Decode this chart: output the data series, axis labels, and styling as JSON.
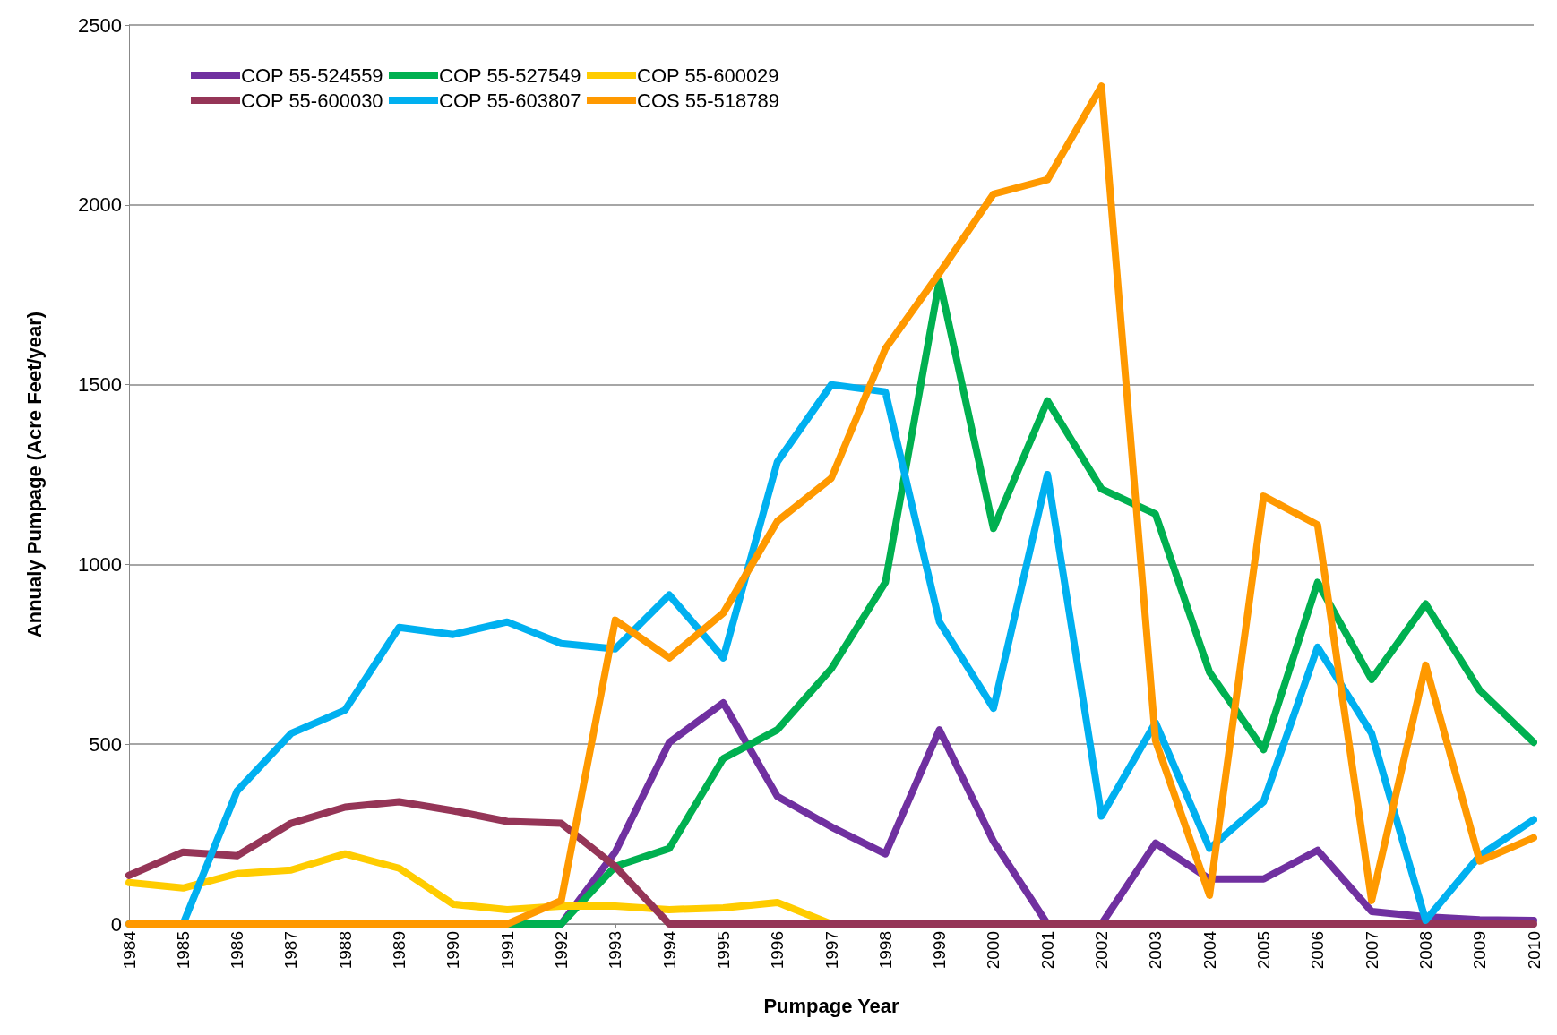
{
  "chart_data": {
    "type": "line",
    "xlabel": "Pumpage Year",
    "ylabel": "Annualy Pumpage (Acre Feet/year)",
    "categories": [
      "1984",
      "1985",
      "1986",
      "1987",
      "1988",
      "1989",
      "1990",
      "1991",
      "1992",
      "1993",
      "1994",
      "1995",
      "1996",
      "1997",
      "1998",
      "1999",
      "2000",
      "2001",
      "2002",
      "2003",
      "2004",
      "2005",
      "2006",
      "2007",
      "2008",
      "2009",
      "2010"
    ],
    "ylim": [
      0,
      2500
    ],
    "yticks": [
      0,
      500,
      1000,
      1500,
      2000,
      2500
    ],
    "grid": "y",
    "legend": "top left",
    "marker": "none",
    "line_style": "solid",
    "series": [
      {
        "name": "COP 55-524559",
        "color": "#7030a0",
        "values": [
          null,
          null,
          null,
          null,
          null,
          null,
          null,
          0,
          0,
          200,
          505,
          615,
          355,
          270,
          195,
          540,
          230,
          0,
          0,
          225,
          125,
          125,
          205,
          35,
          20,
          12,
          10
        ]
      },
      {
        "name": "COP 55-527549",
        "color": "#00b050",
        "values": [
          null,
          null,
          null,
          null,
          null,
          null,
          0,
          0,
          0,
          160,
          210,
          460,
          540,
          710,
          950,
          1790,
          1100,
          1455,
          1210,
          1140,
          700,
          485,
          950,
          680,
          890,
          650,
          505
        ]
      },
      {
        "name": "COP 55-600029",
        "color": "#ffcc00",
        "values": [
          115,
          100,
          140,
          150,
          195,
          155,
          55,
          40,
          50,
          50,
          40,
          45,
          60,
          0,
          null,
          null,
          null,
          null,
          null,
          null,
          null,
          null,
          null,
          null,
          null,
          null,
          null
        ]
      },
      {
        "name": "COP 55-600030",
        "color": "#953557",
        "values": [
          135,
          200,
          190,
          280,
          325,
          340,
          315,
          285,
          280,
          160,
          0,
          0,
          0,
          0,
          0,
          0,
          0,
          0,
          0,
          0,
          0,
          0,
          0,
          0,
          0,
          0,
          0
        ]
      },
      {
        "name": "COP 55-603807",
        "color": "#00b0f0",
        "values": [
          0,
          0,
          370,
          530,
          595,
          825,
          805,
          840,
          780,
          765,
          915,
          740,
          1285,
          1500,
          1480,
          840,
          600,
          1250,
          300,
          560,
          210,
          340,
          770,
          530,
          10,
          190,
          290
        ]
      },
      {
        "name": "COS 55-518789",
        "color": "#ff9900",
        "values": [
          0,
          0,
          0,
          0,
          0,
          0,
          0,
          0,
          65,
          845,
          740,
          865,
          1120,
          1240,
          1600,
          1810,
          2030,
          2070,
          2330,
          510,
          80,
          1190,
          1110,
          65,
          720,
          175,
          240
        ]
      }
    ]
  }
}
